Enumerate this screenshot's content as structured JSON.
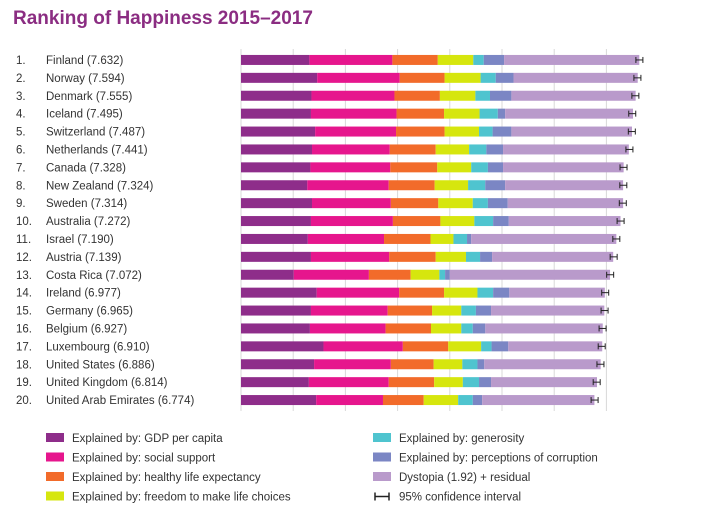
{
  "chart_data": {
    "type": "bar",
    "stacked": true,
    "orientation": "horizontal",
    "title": "Ranking of Happiness 2015–2017",
    "categories": [
      "1.",
      "2.",
      "3.",
      "4.",
      "5.",
      "6.",
      "7.",
      "8.",
      "9.",
      "10.",
      "11.",
      "12.",
      "13.",
      "14.",
      "15.",
      "16.",
      "17.",
      "18.",
      "19.",
      "20."
    ],
    "country_labels": [
      "Finland (7.632)",
      "Norway (7.594)",
      "Denmark (7.555)",
      "Iceland (7.495)",
      "Switzerland (7.487)",
      "Netherlands (7.441)",
      "Canada (7.328)",
      "New Zealand (7.324)",
      "Sweden (7.314)",
      "Australia (7.272)",
      "Israel (7.190)",
      "Austria (7.139)",
      "Costa Rica (7.072)",
      "Ireland (6.977)",
      "Germany (6.965)",
      "Belgium (6.927)",
      "Luxembourg (6.910)",
      "United States (6.886)",
      "United Kingdom (6.814)",
      "United Arab Emirates (6.774)"
    ],
    "scores": [
      7.632,
      7.594,
      7.555,
      7.495,
      7.487,
      7.441,
      7.328,
      7.324,
      7.314,
      7.272,
      7.19,
      7.139,
      7.072,
      6.977,
      6.965,
      6.927,
      6.91,
      6.886,
      6.814,
      6.774
    ],
    "series": [
      {
        "name": "Explained by: GDP per capita",
        "color": "#8e2d8a",
        "values": [
          1.31,
          1.46,
          1.35,
          1.34,
          1.42,
          1.36,
          1.33,
          1.27,
          1.36,
          1.34,
          1.28,
          1.34,
          1.01,
          1.45,
          1.34,
          1.32,
          1.58,
          1.4,
          1.3,
          1.44
        ]
      },
      {
        "name": "Explained by: social support",
        "color": "#e6168d",
        "values": [
          1.59,
          1.58,
          1.59,
          1.64,
          1.55,
          1.49,
          1.53,
          1.56,
          1.51,
          1.57,
          1.46,
          1.5,
          1.44,
          1.58,
          1.47,
          1.45,
          1.52,
          1.47,
          1.53,
          1.28
        ]
      },
      {
        "name": "Explained by: healthy life expectancy",
        "color": "#f26b2a",
        "values": [
          0.87,
          0.86,
          0.87,
          0.91,
          0.93,
          0.88,
          0.9,
          0.88,
          0.91,
          0.91,
          0.89,
          0.89,
          0.8,
          0.86,
          0.85,
          0.87,
          0.87,
          0.82,
          0.87,
          0.78
        ]
      },
      {
        "name": "Explained by: freedom to make life choices",
        "color": "#d6e60e",
        "values": [
          0.68,
          0.69,
          0.68,
          0.68,
          0.66,
          0.64,
          0.65,
          0.64,
          0.66,
          0.65,
          0.44,
          0.58,
          0.55,
          0.64,
          0.56,
          0.58,
          0.63,
          0.55,
          0.55,
          0.66
        ]
      },
      {
        "name": "Explained by: generosity",
        "color": "#4fc4cf",
        "values": [
          0.2,
          0.29,
          0.28,
          0.35,
          0.26,
          0.33,
          0.32,
          0.33,
          0.29,
          0.36,
          0.26,
          0.27,
          0.11,
          0.3,
          0.28,
          0.22,
          0.2,
          0.29,
          0.31,
          0.28
        ]
      },
      {
        "name": "Explained by: perceptions of corruption",
        "color": "#7b86c4",
        "values": [
          0.39,
          0.34,
          0.41,
          0.14,
          0.36,
          0.32,
          0.29,
          0.38,
          0.38,
          0.3,
          0.08,
          0.23,
          0.09,
          0.31,
          0.29,
          0.24,
          0.32,
          0.13,
          0.23,
          0.18
        ]
      },
      {
        "name": "Dystopia (1.92) + residual",
        "color": "#b99acb",
        "values": [
          2.59,
          2.38,
          2.38,
          2.45,
          2.31,
          2.41,
          2.31,
          2.26,
          2.21,
          2.14,
          2.78,
          2.32,
          3.07,
          1.83,
          2.17,
          2.25,
          1.8,
          2.23,
          2.03,
          2.15
        ]
      }
    ],
    "confidence_interval_label": "95% confidence interval",
    "xlim": [
      0,
      7.8
    ],
    "grid": true,
    "legend": "bottom",
    "xlabel": "",
    "ylabel": ""
  }
}
